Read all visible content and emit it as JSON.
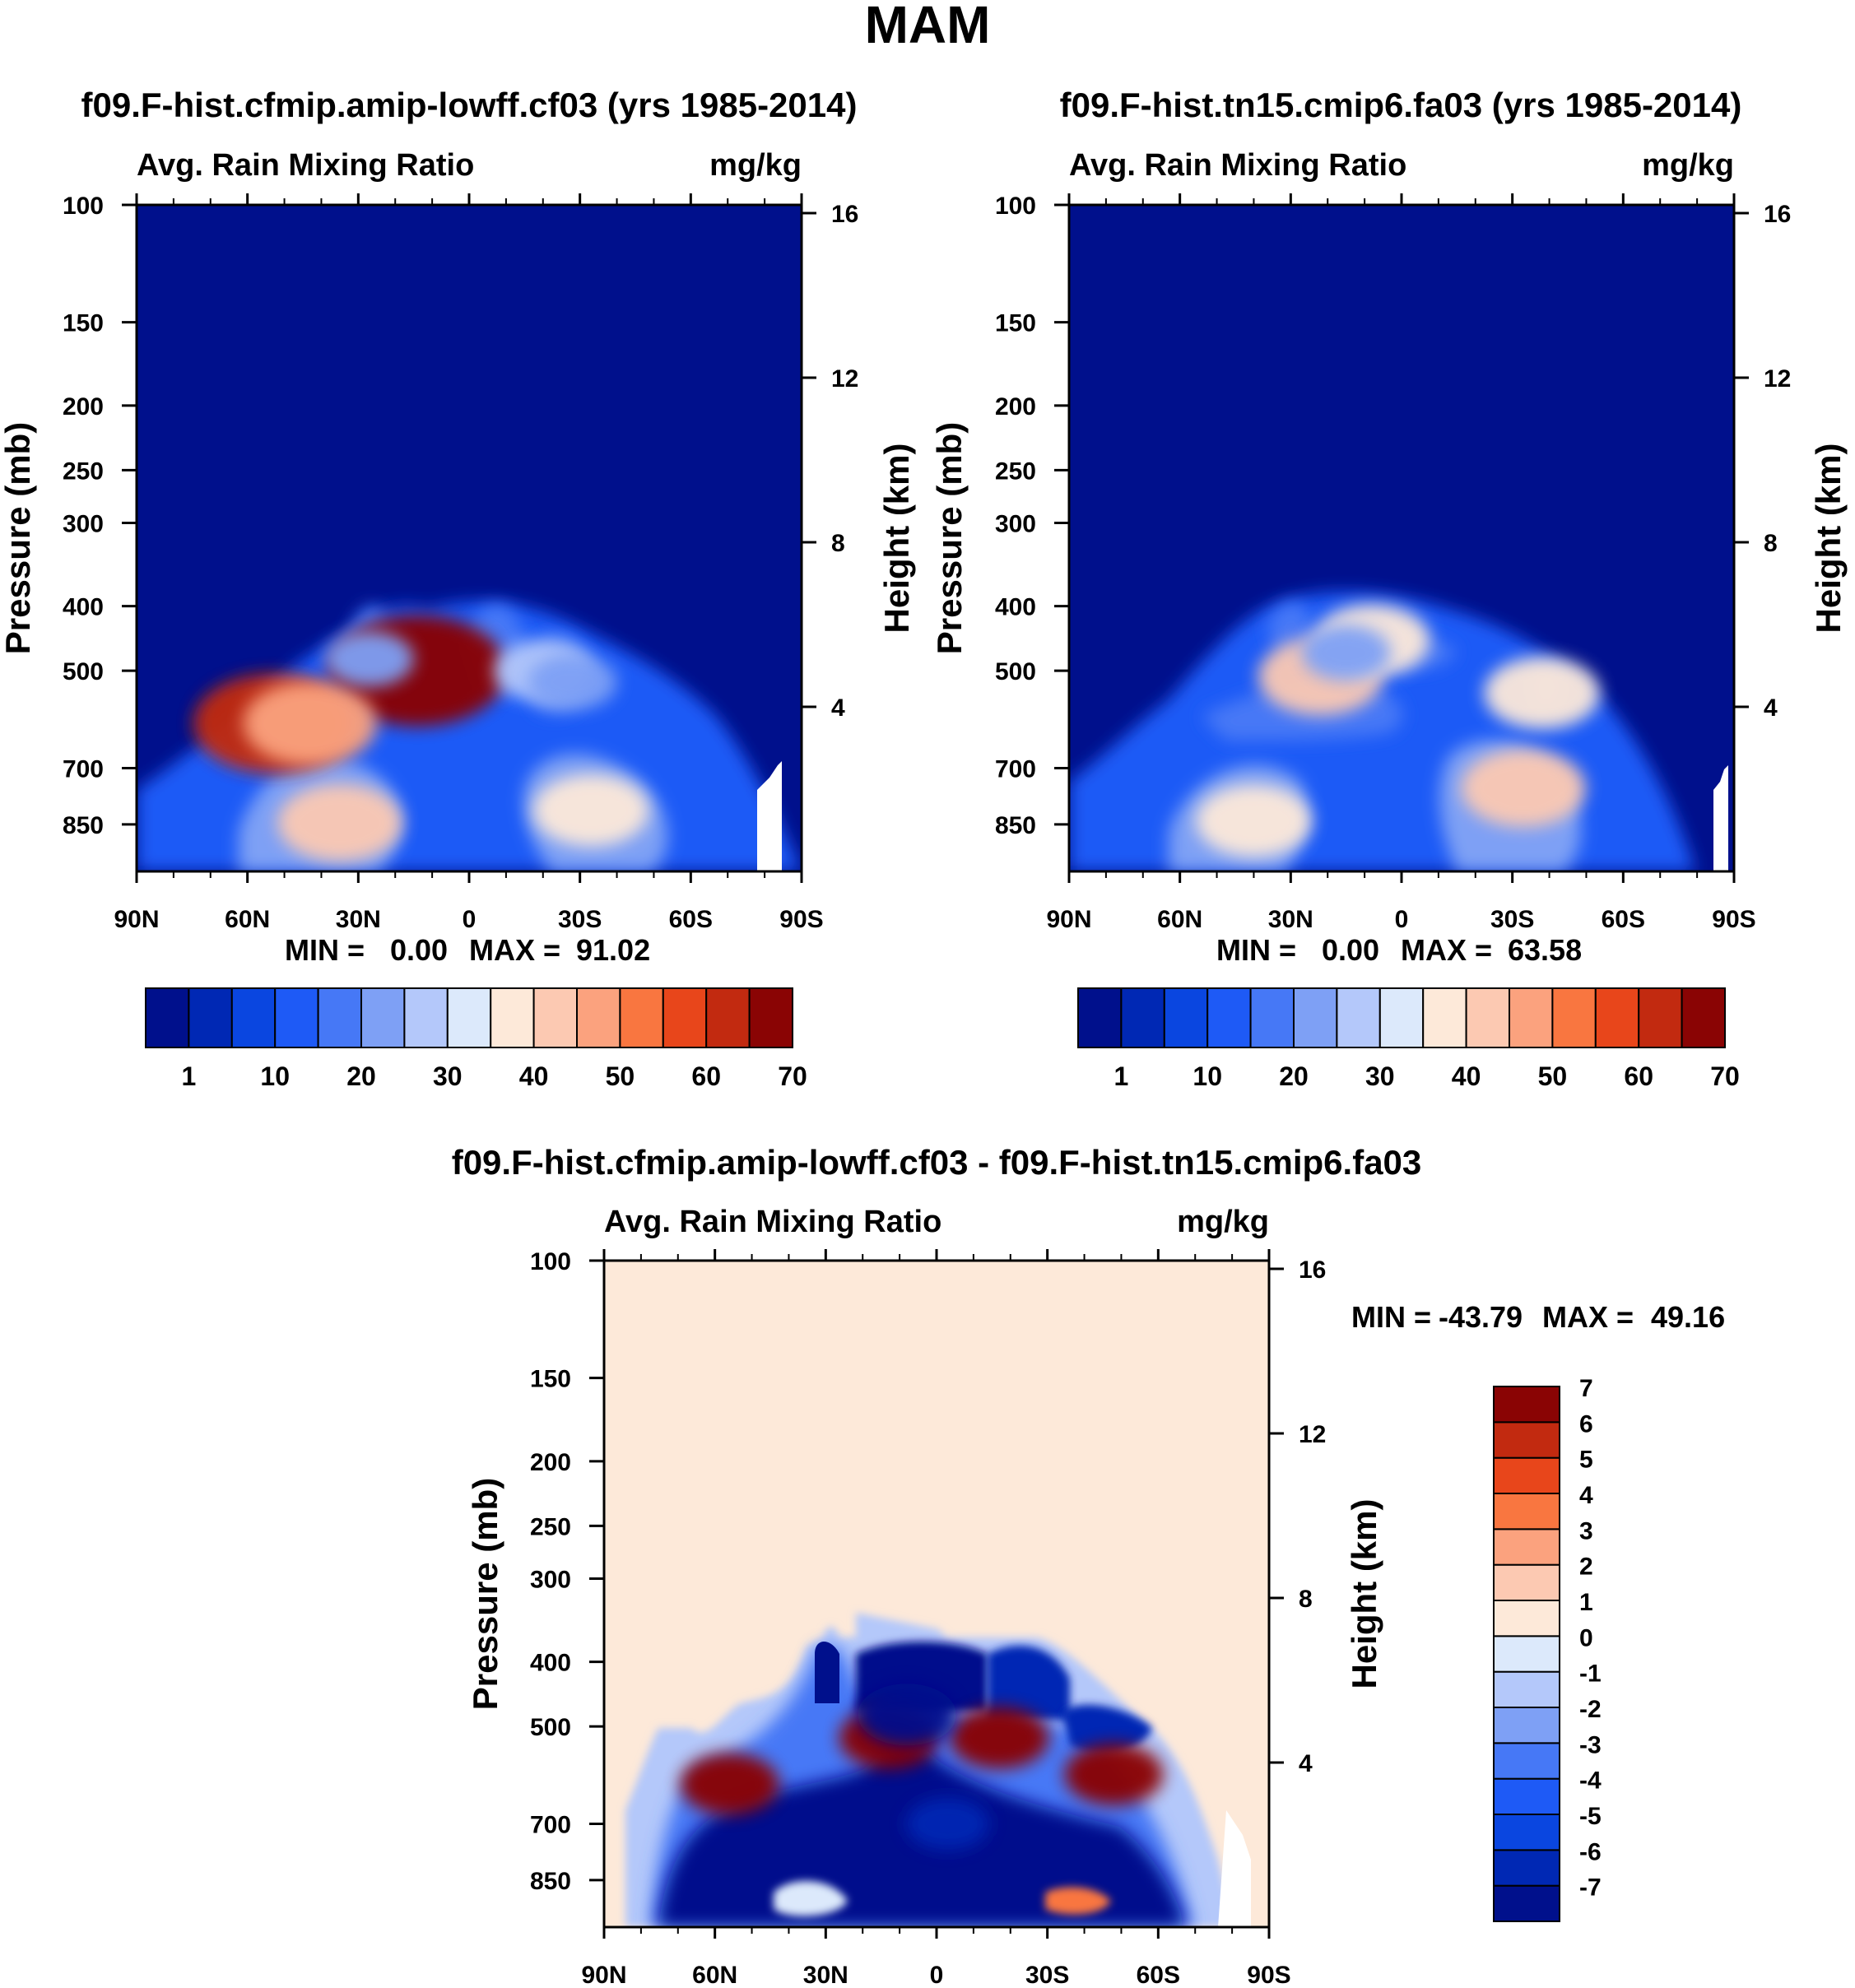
{
  "figure_title": "MAM",
  "chart_data": [
    {
      "type": "heatmap",
      "title": "f09.F-hist.cfmip.amip-lowff.cf03 (yrs 1985-2014)",
      "subtitle_left": "Avg. Rain Mixing Ratio",
      "subtitle_right": "mg/kg",
      "ylabel": "Pressure (mb)",
      "ylabel_right": "Height (km)",
      "xlim": [
        90,
        -90
      ],
      "ylim": [
        100,
        1000
      ],
      "xticks": [
        90,
        60,
        30,
        0,
        -30,
        -60,
        -90
      ],
      "xtick_labels": [
        "90N",
        "60N",
        "30N",
        "0",
        "30S",
        "60S",
        "90S"
      ],
      "yticks": [
        100,
        150,
        200,
        250,
        300,
        400,
        500,
        700,
        850
      ],
      "ytick_labels": [
        "100",
        "150",
        "200",
        "250",
        "300",
        "400",
        "500",
        "700",
        "850"
      ],
      "yticks_right": [
        16,
        12,
        8,
        4
      ],
      "ytick_labels_right": [
        "16",
        "12",
        "8",
        "4"
      ],
      "stats": {
        "min_label": "MIN =",
        "min": "0.00",
        "max_label": "MAX =",
        "max": "91.02"
      },
      "colorbar": {
        "orientation": "horizontal",
        "colors": [
          "#00108c",
          "#0028b4",
          "#0a46e0",
          "#1e5af6",
          "#4678f6",
          "#7ea0f5",
          "#b4c8fa",
          "#dce9fb",
          "#fde9d9",
          "#fcc9b2",
          "#fba27e",
          "#f97640",
          "#e8461b",
          "#c22a10",
          "#8a0404"
        ],
        "tick_labels": [
          "1",
          "10",
          "20",
          "30",
          "40",
          "50",
          "60",
          "70"
        ]
      },
      "features": [
        {
          "lat": 35,
          "p": 845,
          "value": 50
        },
        {
          "lat": 14,
          "p": 500,
          "value": 80
        },
        {
          "lat": 53,
          "p": 600,
          "value": 70
        },
        {
          "lat": 43,
          "p": 600,
          "value": 55
        },
        {
          "lat": -33,
          "p": 810,
          "value": 45
        },
        {
          "lat": -20,
          "p": 500,
          "value": 35
        },
        {
          "lat": -28,
          "p": 520,
          "value": 30
        },
        {
          "lat": 27,
          "p": 480,
          "value": 30
        }
      ]
    },
    {
      "type": "heatmap",
      "title": "f09.F-hist.tn15.cmip6.fa03 (yrs 1985-2014)",
      "subtitle_left": "Avg. Rain Mixing Ratio",
      "subtitle_right": "mg/kg",
      "ylabel": "Pressure (mb)",
      "ylabel_right": "Height (km)",
      "xlim": [
        90,
        -90
      ],
      "ylim": [
        100,
        1000
      ],
      "xticks": [
        90,
        60,
        30,
        0,
        -30,
        -60,
        -90
      ],
      "xtick_labels": [
        "90N",
        "60N",
        "30N",
        "0",
        "30S",
        "60S",
        "90S"
      ],
      "yticks": [
        100,
        150,
        200,
        250,
        300,
        400,
        500,
        700,
        850
      ],
      "ytick_labels": [
        "100",
        "150",
        "200",
        "250",
        "300",
        "400",
        "500",
        "700",
        "850"
      ],
      "yticks_right": [
        16,
        12,
        8,
        4
      ],
      "ytick_labels_right": [
        "16",
        "12",
        "8",
        "4"
      ],
      "stats": {
        "min_label": "MIN =",
        "min": "0.00",
        "max_label": "MAX =",
        "max": "63.58"
      },
      "colorbar": {
        "orientation": "horizontal",
        "colors": [
          "#00108c",
          "#0028b4",
          "#0a46e0",
          "#1e5af6",
          "#4678f6",
          "#7ea0f5",
          "#b4c8fa",
          "#dce9fb",
          "#fde9d9",
          "#fcc9b2",
          "#fba27e",
          "#f97640",
          "#e8461b",
          "#c22a10",
          "#8a0404"
        ],
        "tick_labels": [
          "1",
          "10",
          "20",
          "30",
          "40",
          "50",
          "60",
          "70"
        ]
      },
      "features": [
        {
          "lat": 40,
          "p": 840,
          "value": 45
        },
        {
          "lat": -33,
          "p": 750,
          "value": 50
        },
        {
          "lat": 22,
          "p": 510,
          "value": 50
        },
        {
          "lat": 8,
          "p": 450,
          "value": 45
        },
        {
          "lat": -38,
          "p": 540,
          "value": 45
        },
        {
          "lat": 15,
          "p": 470,
          "value": 30
        }
      ]
    },
    {
      "type": "heatmap",
      "title": "f09.F-hist.cfmip.amip-lowff.cf03 - f09.F-hist.tn15.cmip6.fa03",
      "subtitle_left": "Avg. Rain Mixing Ratio",
      "subtitle_right": "mg/kg",
      "ylabel": "Pressure (mb)",
      "ylabel_right": "Height (km)",
      "xlim": [
        90,
        -90
      ],
      "ylim": [
        100,
        1000
      ],
      "xticks": [
        90,
        60,
        30,
        0,
        -30,
        -60,
        -90
      ],
      "xtick_labels": [
        "90N",
        "60N",
        "30N",
        "0",
        "30S",
        "60S",
        "90S"
      ],
      "yticks": [
        100,
        150,
        200,
        250,
        300,
        400,
        500,
        700,
        850
      ],
      "ytick_labels": [
        "100",
        "150",
        "200",
        "250",
        "300",
        "400",
        "500",
        "700",
        "850"
      ],
      "yticks_right": [
        16,
        12,
        8,
        4
      ],
      "ytick_labels_right": [
        "16",
        "12",
        "8",
        "4"
      ],
      "stats": {
        "min_label": "MIN =",
        "min": "-43.79",
        "max_label": "MAX =",
        "max": "49.16"
      },
      "colorbar": {
        "orientation": "vertical",
        "colors": [
          "#00108c",
          "#0028b4",
          "#0a46e0",
          "#1e5af6",
          "#4678f6",
          "#7ea0f5",
          "#b4c8fa",
          "#dce9fb",
          "#fde9d9",
          "#fcc9b2",
          "#fba27e",
          "#f97640",
          "#e8461b",
          "#c22a10",
          "#8a0404"
        ],
        "tick_labels": [
          "-7",
          "-6",
          "-5",
          "-4",
          "-3",
          "-2",
          "-1",
          "0",
          "1",
          "2",
          "3",
          "4",
          "5",
          "6",
          "7"
        ]
      },
      "features": [
        {
          "lat": 56,
          "p": 610,
          "value": 8
        },
        {
          "lat": 13,
          "p": 520,
          "value": 8
        },
        {
          "lat": -17,
          "p": 520,
          "value": 8
        },
        {
          "lat": -48,
          "p": 590,
          "value": 8
        },
        {
          "lat": 8,
          "p": 480,
          "value": -8
        },
        {
          "lat": -3,
          "p": 700,
          "value": -6
        }
      ]
    }
  ]
}
